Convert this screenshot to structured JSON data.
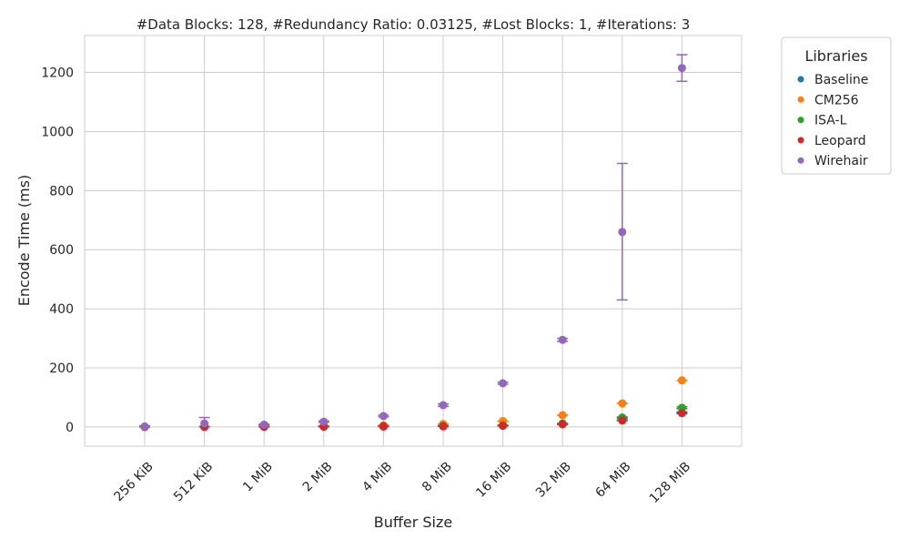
{
  "chart_data": {
    "type": "scatter",
    "title": "#Data Blocks: 128, #Redundancy Ratio: 0.03125, #Lost Blocks: 1, #Iterations: 3",
    "xlabel": "Buffer Size",
    "ylabel": "Encode Time (ms)",
    "categories": [
      "256 KiB",
      "512 KiB",
      "1 MiB",
      "2 MiB",
      "4 MiB",
      "8 MiB",
      "16 MiB",
      "32 MiB",
      "64 MiB",
      "128 MiB"
    ],
    "ylim": [
      -65,
      1325
    ],
    "yticks": [
      0,
      200,
      400,
      600,
      800,
      1000,
      1200
    ],
    "grid": true,
    "legend": {
      "title": "Libraries",
      "placement": "outside-right"
    },
    "series": [
      {
        "name": "Baseline",
        "color": "#1f77b4",
        "values": [
          0.5,
          0.8,
          1.2,
          1.5,
          2,
          3,
          5,
          10,
          25,
          48
        ],
        "err_low": [
          0.5,
          0.8,
          1.2,
          1.5,
          2,
          3,
          5,
          9,
          22,
          45
        ],
        "err_high": [
          0.5,
          0.8,
          1.2,
          1.5,
          2,
          3,
          5,
          11,
          28,
          51
        ]
      },
      {
        "name": "CM256",
        "color": "#ff7f0e",
        "values": [
          0.8,
          1.5,
          2.5,
          4,
          6,
          10,
          20,
          40,
          80,
          158
        ],
        "err_low": [
          0.8,
          1.5,
          2.5,
          4,
          6,
          10,
          20,
          40,
          80,
          158
        ],
        "err_high": [
          0.8,
          1.5,
          2.5,
          4,
          6,
          10,
          20,
          40,
          80,
          158
        ]
      },
      {
        "name": "ISA-L",
        "color": "#2ca02c",
        "values": [
          0.3,
          0.6,
          1,
          1.8,
          3,
          4,
          6,
          12,
          32,
          65
        ],
        "err_low": [
          0.3,
          0.6,
          1,
          1.8,
          3,
          4,
          6,
          12,
          30,
          62
        ],
        "err_high": [
          0.3,
          0.6,
          1,
          1.8,
          3,
          4,
          6,
          12,
          34,
          68
        ]
      },
      {
        "name": "Leopard",
        "color": "#d62728",
        "values": [
          0.3,
          0.5,
          0.8,
          1,
          1.5,
          2,
          4,
          9,
          22,
          47
        ],
        "err_low": [
          0.3,
          0.5,
          0.8,
          1,
          1.5,
          2,
          4,
          9,
          22,
          47
        ],
        "err_high": [
          0.3,
          0.5,
          0.8,
          1,
          1.5,
          2,
          4,
          9,
          22,
          47
        ]
      },
      {
        "name": "Wirehair",
        "color": "#9467bd",
        "values": [
          2,
          12,
          8,
          18,
          37,
          74,
          148,
          295,
          660,
          1215
        ],
        "err_low": [
          0,
          0,
          6,
          16,
          34,
          70,
          145,
          290,
          430,
          1170
        ],
        "err_high": [
          4,
          32,
          10,
          20,
          40,
          78,
          152,
          300,
          892,
          1260
        ]
      }
    ]
  }
}
